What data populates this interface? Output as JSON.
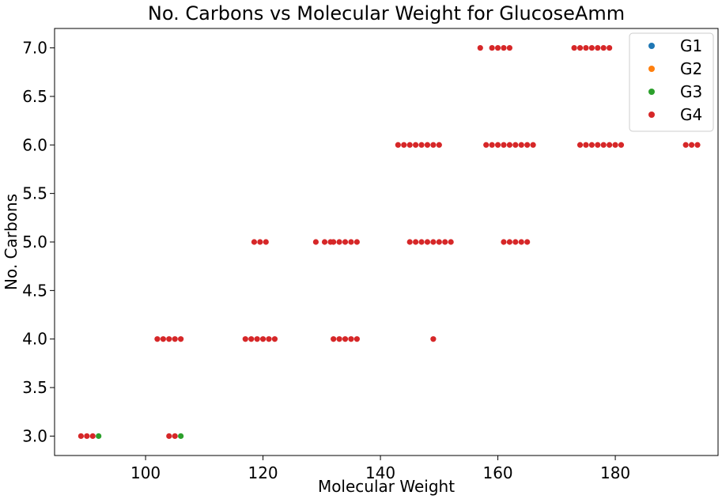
{
  "chart_data": {
    "type": "scatter",
    "title": "No. Carbons vs Molecular Weight for GlucoseAmm",
    "xlabel": "Molecular Weight",
    "ylabel": "No. Carbons",
    "xlim": [
      84.5,
      197.5
    ],
    "ylim": [
      2.8,
      7.2
    ],
    "xticks": [
      100,
      120,
      140,
      160,
      180
    ],
    "yticks": [
      3.0,
      3.5,
      4.0,
      4.5,
      5.0,
      5.5,
      6.0,
      6.5,
      7.0
    ],
    "grid": false,
    "legend_position": "top-right",
    "series": [
      {
        "name": "G1",
        "color": "#1f77b4",
        "points": []
      },
      {
        "name": "G2",
        "color": "#ff7f0e",
        "points": []
      },
      {
        "name": "G3",
        "color": "#2ca02c",
        "points": [
          [
            92,
            3
          ],
          [
            106,
            3
          ]
        ]
      },
      {
        "name": "G4",
        "color": "#d62728",
        "points": [
          [
            89,
            3
          ],
          [
            90,
            3
          ],
          [
            91,
            3
          ],
          [
            104,
            3
          ],
          [
            105,
            3
          ],
          [
            102,
            4
          ],
          [
            103,
            4
          ],
          [
            104,
            4
          ],
          [
            105,
            4
          ],
          [
            106,
            4
          ],
          [
            117,
            4
          ],
          [
            118,
            4
          ],
          [
            119,
            4
          ],
          [
            120,
            4
          ],
          [
            121,
            4
          ],
          [
            122,
            4
          ],
          [
            132,
            4
          ],
          [
            133,
            4
          ],
          [
            134,
            4
          ],
          [
            135,
            4
          ],
          [
            136,
            4
          ],
          [
            149,
            4
          ],
          [
            118.5,
            5
          ],
          [
            119.5,
            5
          ],
          [
            120.5,
            5
          ],
          [
            129,
            5
          ],
          [
            130.5,
            5
          ],
          [
            131.5,
            5
          ],
          [
            132,
            5
          ],
          [
            133,
            5
          ],
          [
            134,
            5
          ],
          [
            135,
            5
          ],
          [
            136,
            5
          ],
          [
            145,
            5
          ],
          [
            146,
            5
          ],
          [
            147,
            5
          ],
          [
            148,
            5
          ],
          [
            149,
            5
          ],
          [
            150,
            5
          ],
          [
            151,
            5
          ],
          [
            152,
            5
          ],
          [
            161,
            5
          ],
          [
            162,
            5
          ],
          [
            163,
            5
          ],
          [
            164,
            5
          ],
          [
            165,
            5
          ],
          [
            143,
            6
          ],
          [
            144,
            6
          ],
          [
            145,
            6
          ],
          [
            146,
            6
          ],
          [
            147,
            6
          ],
          [
            148,
            6
          ],
          [
            149,
            6
          ],
          [
            150,
            6
          ],
          [
            158,
            6
          ],
          [
            159,
            6
          ],
          [
            160,
            6
          ],
          [
            161,
            6
          ],
          [
            162,
            6
          ],
          [
            163,
            6
          ],
          [
            164,
            6
          ],
          [
            165,
            6
          ],
          [
            166,
            6
          ],
          [
            174,
            6
          ],
          [
            175,
            6
          ],
          [
            176,
            6
          ],
          [
            177,
            6
          ],
          [
            178,
            6
          ],
          [
            179,
            6
          ],
          [
            180,
            6
          ],
          [
            181,
            6
          ],
          [
            192,
            6
          ],
          [
            193,
            6
          ],
          [
            194,
            6
          ],
          [
            157,
            7
          ],
          [
            159,
            7
          ],
          [
            160,
            7
          ],
          [
            161,
            7
          ],
          [
            162,
            7
          ],
          [
            173,
            7
          ],
          [
            174,
            7
          ],
          [
            175,
            7
          ],
          [
            176,
            7
          ],
          [
            177,
            7
          ],
          [
            178,
            7
          ],
          [
            179,
            7
          ]
        ]
      }
    ]
  }
}
